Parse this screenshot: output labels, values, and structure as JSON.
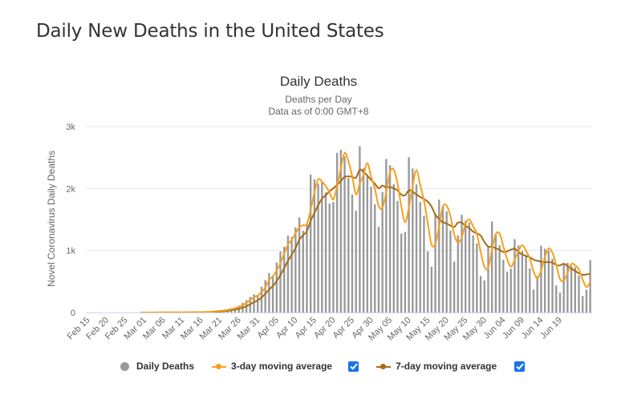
{
  "page": {
    "title": "Daily New Deaths in the United States"
  },
  "chart_data": {
    "type": "bar",
    "title": "Daily Deaths",
    "subtitle": [
      "Deaths per Day",
      "Data as of 0:00 GMT+8"
    ],
    "xlabel": "",
    "ylabel": "Novel Coronavirus Daily Deaths",
    "ylim": [
      0,
      3000
    ],
    "yticks": [
      0,
      1000,
      2000,
      3000
    ],
    "ytick_labels": [
      "0",
      "1k",
      "2k",
      "3k"
    ],
    "grid": true,
    "legend_position": "bottom",
    "start_date": "Feb 15",
    "xtick_labels": [
      "Feb 15",
      "Feb 20",
      "Feb 25",
      "Mar 01",
      "Mar 06",
      "Mar 11",
      "Mar 16",
      "Mar 21",
      "Mar 26",
      "Mar 31",
      "Apr 05",
      "Apr 10",
      "Apr 15",
      "Apr 20",
      "Apr 25",
      "Apr 30",
      "May 05",
      "May 10",
      "May 15",
      "May 20",
      "May 25",
      "May 30",
      "Jun 04",
      "Jun 09",
      "Jun 14",
      "Jun 19"
    ],
    "xtick_every": 5,
    "series": [
      {
        "name": "Daily Deaths",
        "type": "bar",
        "color": "#999999",
        "values": [
          0,
          0,
          0,
          0,
          0,
          0,
          0,
          0,
          0,
          0,
          0,
          0,
          0,
          0,
          0,
          1,
          0,
          1,
          1,
          3,
          2,
          1,
          2,
          2,
          1,
          4,
          4,
          3,
          4,
          6,
          9,
          10,
          12,
          22,
          27,
          31,
          41,
          52,
          68,
          84,
          111,
          157,
          198,
          249,
          294,
          276,
          415,
          522,
          637,
          593,
          805,
          984,
          1062,
          1240,
          1218,
          1373,
          1534,
          1318,
          1436,
          2225,
          2149,
          2078,
          2106,
          1939,
          1758,
          1780,
          2577,
          2627,
          2520,
          2172,
          1904,
          1640,
          2685,
          2332,
          2220,
          2030,
          1746,
          1383,
          1942,
          2477,
          2375,
          2070,
          1800,
          1272,
          1300,
          2505,
          2323,
          2066,
          1784,
          1560,
          986,
          737,
          1600,
          1822,
          1713,
          1634,
          1324,
          822,
          1245,
          1576,
          1480,
          1451,
          1243,
          1113,
          587,
          516,
          1058,
          1468,
          1263,
          1087,
          850,
          658,
          706,
          1183,
          1082,
          993,
          915,
          711,
          370,
          588,
          1077,
          1029,
          998,
          866,
          437,
          321,
          785,
          803,
          754,
          731,
          597,
          266,
          367,
          844
        ]
      },
      {
        "name": "3-day moving average",
        "type": "line",
        "color": "#f8a01d",
        "toggle_checked": true
      },
      {
        "name": "7-day moving average",
        "type": "line",
        "color": "#a86b16",
        "toggle_checked": true
      }
    ]
  },
  "legend": {
    "items": [
      {
        "label": "Daily Deaths",
        "color": "#999999"
      },
      {
        "label": "3-day moving average",
        "color": "#f8a01d",
        "checked": true
      },
      {
        "label": "7-day moving average",
        "color": "#a86b16",
        "checked": true
      }
    ]
  },
  "colors": {
    "grid": "#e6e6e6",
    "axis": "#ccd6eb",
    "checkbox": "#1a73e8"
  }
}
